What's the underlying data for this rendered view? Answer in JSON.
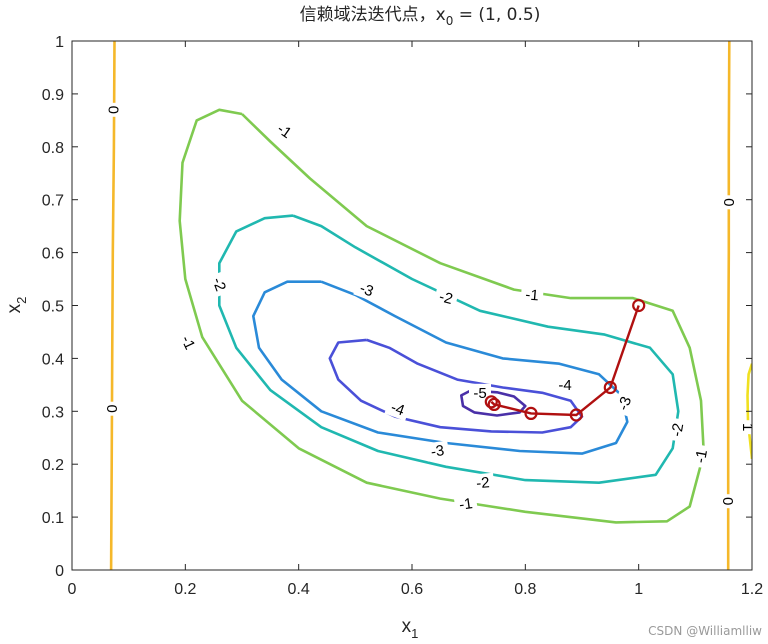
{
  "chart_data": {
    "type": "contour",
    "title": "信赖域法迭代点，x",
    "title_sub": "0",
    "title_tail": " = (1, 0.5)",
    "xlabel": "x",
    "xlabel_sub": "1",
    "ylabel": "x",
    "ylabel_sub": "2",
    "xlim": [
      0,
      1.2
    ],
    "ylim": [
      0,
      1
    ],
    "xticks": [
      0,
      0.2,
      0.4,
      0.6,
      0.8,
      1,
      1.2
    ],
    "xtick_labels": [
      "0",
      "0.2",
      "0.4",
      "0.6",
      "0.8",
      "1",
      "1.2"
    ],
    "yticks": [
      0,
      0.1,
      0.2,
      0.3,
      0.4,
      0.5,
      0.6,
      0.7,
      0.8,
      0.9,
      1
    ],
    "ytick_labels": [
      "0",
      "0.1",
      "0.2",
      "0.3",
      "0.4",
      "0.5",
      "0.6",
      "0.7",
      "0.8",
      "0.9",
      "1"
    ],
    "grid": false,
    "contours": [
      {
        "level": "0",
        "color": "#f5b82a",
        "points": [
          [
            0.075,
            1.0
          ],
          [
            0.074,
            0.8
          ],
          [
            0.072,
            0.6
          ],
          [
            0.071,
            0.4
          ],
          [
            0.07,
            0.2
          ],
          [
            0.069,
            0.0
          ]
        ]
      },
      {
        "level": "0",
        "color": "#f5b82a",
        "points": [
          [
            1.16,
            1.0
          ],
          [
            1.159,
            0.8
          ],
          [
            1.159,
            0.6
          ],
          [
            1.158,
            0.4
          ],
          [
            1.158,
            0.2
          ],
          [
            1.158,
            0.0
          ]
        ]
      },
      {
        "level": "1",
        "color": "#f0e020",
        "points": [
          [
            1.2,
            0.39
          ],
          [
            1.194,
            0.37
          ],
          [
            1.192,
            0.33
          ],
          [
            1.193,
            0.28
          ],
          [
            1.197,
            0.24
          ],
          [
            1.2,
            0.21
          ]
        ]
      },
      {
        "level": "-1",
        "color": "#7fca50",
        "points": [
          [
            0.3,
            0.862
          ],
          [
            0.26,
            0.87
          ],
          [
            0.22,
            0.85
          ],
          [
            0.195,
            0.77
          ],
          [
            0.19,
            0.66
          ],
          [
            0.2,
            0.55
          ],
          [
            0.23,
            0.44
          ],
          [
            0.3,
            0.32
          ],
          [
            0.4,
            0.23
          ],
          [
            0.52,
            0.165
          ],
          [
            0.65,
            0.135
          ],
          [
            0.8,
            0.11
          ],
          [
            0.96,
            0.09
          ],
          [
            1.05,
            0.092
          ],
          [
            1.09,
            0.12
          ],
          [
            1.115,
            0.22
          ],
          [
            1.11,
            0.32
          ],
          [
            1.09,
            0.42
          ],
          [
            1.06,
            0.49
          ],
          [
            0.99,
            0.514
          ],
          [
            0.88,
            0.514
          ],
          [
            0.78,
            0.53
          ],
          [
            0.65,
            0.58
          ],
          [
            0.52,
            0.65
          ],
          [
            0.42,
            0.74
          ],
          [
            0.35,
            0.81
          ],
          [
            0.3,
            0.862
          ]
        ]
      },
      {
        "level": "-2",
        "color": "#20b8b0",
        "points": [
          [
            0.39,
            0.67
          ],
          [
            0.34,
            0.665
          ],
          [
            0.29,
            0.64
          ],
          [
            0.26,
            0.58
          ],
          [
            0.26,
            0.5
          ],
          [
            0.29,
            0.42
          ],
          [
            0.35,
            0.34
          ],
          [
            0.44,
            0.27
          ],
          [
            0.54,
            0.225
          ],
          [
            0.66,
            0.195
          ],
          [
            0.8,
            0.17
          ],
          [
            0.93,
            0.165
          ],
          [
            1.03,
            0.18
          ],
          [
            1.06,
            0.23
          ],
          [
            1.07,
            0.3
          ],
          [
            1.06,
            0.37
          ],
          [
            1.02,
            0.42
          ],
          [
            0.94,
            0.445
          ],
          [
            0.84,
            0.46
          ],
          [
            0.72,
            0.49
          ],
          [
            0.6,
            0.55
          ],
          [
            0.5,
            0.61
          ],
          [
            0.44,
            0.65
          ],
          [
            0.39,
            0.67
          ]
        ]
      },
      {
        "level": "-3",
        "color": "#2a8ad8",
        "points": [
          [
            0.44,
            0.545
          ],
          [
            0.38,
            0.545
          ],
          [
            0.34,
            0.525
          ],
          [
            0.32,
            0.48
          ],
          [
            0.33,
            0.42
          ],
          [
            0.37,
            0.36
          ],
          [
            0.44,
            0.3
          ],
          [
            0.54,
            0.26
          ],
          [
            0.66,
            0.24
          ],
          [
            0.79,
            0.225
          ],
          [
            0.9,
            0.22
          ],
          [
            0.96,
            0.24
          ],
          [
            0.98,
            0.28
          ],
          [
            0.97,
            0.33
          ],
          [
            0.93,
            0.37
          ],
          [
            0.86,
            0.39
          ],
          [
            0.76,
            0.4
          ],
          [
            0.66,
            0.43
          ],
          [
            0.57,
            0.48
          ],
          [
            0.5,
            0.52
          ],
          [
            0.44,
            0.545
          ]
        ]
      },
      {
        "level": "-4",
        "color": "#4a50d8",
        "points": [
          [
            0.52,
            0.435
          ],
          [
            0.47,
            0.43
          ],
          [
            0.455,
            0.4
          ],
          [
            0.47,
            0.36
          ],
          [
            0.51,
            0.32
          ],
          [
            0.57,
            0.29
          ],
          [
            0.65,
            0.27
          ],
          [
            0.74,
            0.262
          ],
          [
            0.83,
            0.26
          ],
          [
            0.88,
            0.27
          ],
          [
            0.9,
            0.29
          ],
          [
            0.88,
            0.32
          ],
          [
            0.83,
            0.335
          ],
          [
            0.76,
            0.345
          ],
          [
            0.68,
            0.36
          ],
          [
            0.61,
            0.39
          ],
          [
            0.56,
            0.42
          ],
          [
            0.52,
            0.435
          ]
        ]
      },
      {
        "level": "-5",
        "color": "#4a30a8",
        "points": [
          [
            0.705,
            0.34
          ],
          [
            0.687,
            0.33
          ],
          [
            0.69,
            0.31
          ],
          [
            0.71,
            0.298
          ],
          [
            0.75,
            0.292
          ],
          [
            0.79,
            0.298
          ],
          [
            0.8,
            0.31
          ],
          [
            0.78,
            0.328
          ],
          [
            0.75,
            0.336
          ],
          [
            0.72,
            0.338
          ],
          [
            0.705,
            0.34
          ]
        ]
      }
    ],
    "contour_labels": [
      {
        "text": "0",
        "x": 0.073,
        "y": 0.87,
        "rotate": -90
      },
      {
        "text": "0",
        "x": 0.071,
        "y": 0.305,
        "rotate": -90
      },
      {
        "text": "0",
        "x": 1.159,
        "y": 0.695,
        "rotate": -90
      },
      {
        "text": "0",
        "x": 1.158,
        "y": 0.13,
        "rotate": -90
      },
      {
        "text": "1",
        "x": 1.193,
        "y": 0.27,
        "rotate": 90
      },
      {
        "text": "-1",
        "x": 0.375,
        "y": 0.83,
        "rotate": 35
      },
      {
        "text": "-1",
        "x": 0.205,
        "y": 0.43,
        "rotate": 65
      },
      {
        "text": "-1",
        "x": 0.812,
        "y": 0.52,
        "rotate": 5
      },
      {
        "text": "-1",
        "x": 0.695,
        "y": 0.125,
        "rotate": -8
      },
      {
        "text": "-1",
        "x": 1.11,
        "y": 0.215,
        "rotate": -80
      },
      {
        "text": "-2",
        "x": 0.26,
        "y": 0.54,
        "rotate": 70
      },
      {
        "text": "-2",
        "x": 0.66,
        "y": 0.515,
        "rotate": 15
      },
      {
        "text": "-2",
        "x": 0.725,
        "y": 0.165,
        "rotate": -5
      },
      {
        "text": "-2",
        "x": 1.068,
        "y": 0.265,
        "rotate": -80
      },
      {
        "text": "-3",
        "x": 0.52,
        "y": 0.53,
        "rotate": 20
      },
      {
        "text": "-3",
        "x": 0.645,
        "y": 0.225,
        "rotate": -8
      },
      {
        "text": "-3",
        "x": 0.975,
        "y": 0.315,
        "rotate": -70
      },
      {
        "text": "-4",
        "x": 0.87,
        "y": 0.35,
        "rotate": 0
      },
      {
        "text": "-4",
        "x": 0.575,
        "y": 0.305,
        "rotate": 20
      },
      {
        "text": "-5",
        "x": 0.72,
        "y": 0.335,
        "rotate": 0
      }
    ],
    "iterates": {
      "color": "#b01010",
      "points": [
        [
          1.0,
          0.5
        ],
        [
          0.95,
          0.345
        ],
        [
          0.89,
          0.293
        ],
        [
          0.81,
          0.296
        ],
        [
          0.745,
          0.313
        ],
        [
          0.74,
          0.318
        ]
      ]
    }
  },
  "watermark": "CSDN @Williamlliw"
}
